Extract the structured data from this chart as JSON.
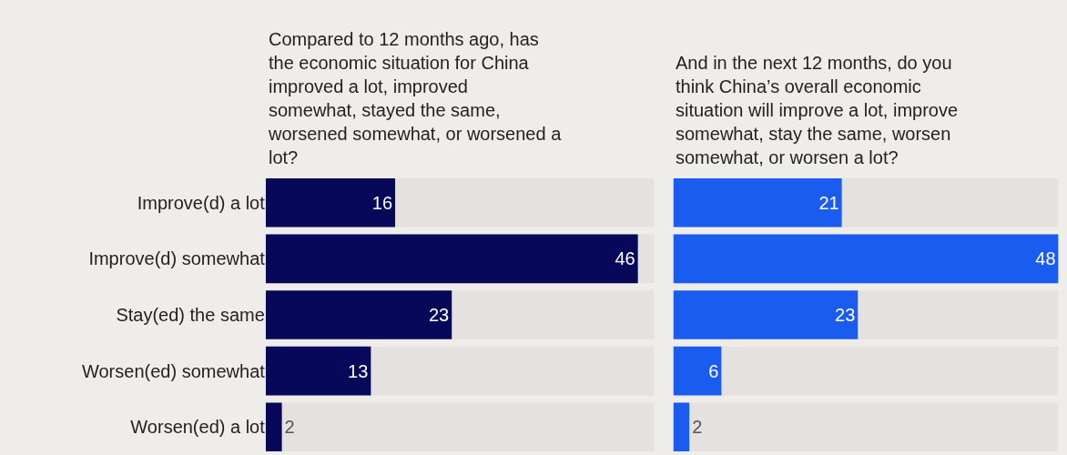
{
  "chart_data": [
    {
      "type": "bar",
      "orientation": "horizontal",
      "title": "Compared to 12 months ago, has the economic situation for China improved a lot, improved somewhat, stayed the same, worsened somewhat, or worsened a lot?",
      "categories": [
        "Improve(d) a lot",
        "Improve(d) somewhat",
        "Stay(ed) the same",
        "Worsen(ed) somewhat",
        "Worsen(ed) a lot"
      ],
      "values": [
        16,
        46,
        23,
        13,
        2
      ],
      "color": "#08085a",
      "xlim": [
        0,
        48
      ],
      "data_labels": true,
      "tick_labels": "y",
      "grid": false
    },
    {
      "type": "bar",
      "orientation": "horizontal",
      "title": "And in the next 12 months, do you think China’s overall economic situation will improve a lot, improve somewhat, stay the same, worsen somewhat, or worsen a lot?",
      "categories": [
        null,
        null,
        null,
        null,
        null
      ],
      "values": [
        21,
        48,
        23,
        6,
        2
      ],
      "color": "#1a5cf0",
      "xlim": [
        0,
        48
      ],
      "data_labels": true,
      "tick_labels": false,
      "grid": false
    }
  ]
}
